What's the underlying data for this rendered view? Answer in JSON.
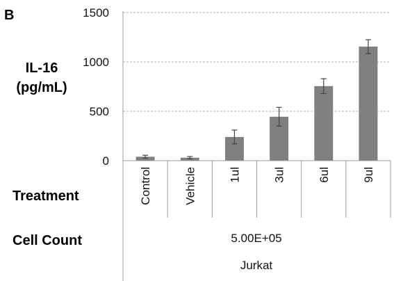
{
  "panel_label": "B",
  "chart_data": {
    "type": "bar",
    "ylabel_lines": [
      "IL-16",
      "(pg/mL)"
    ],
    "ylim": [
      0,
      1500
    ],
    "yticks": [
      0,
      500,
      1000,
      1500
    ],
    "grid": true,
    "categories": [
      "Control",
      "Vehicle",
      "1ul",
      "3ul",
      "6ul",
      "9ul"
    ],
    "values": [
      40,
      30,
      240,
      445,
      755,
      1155
    ],
    "errors": [
      15,
      12,
      70,
      95,
      75,
      70
    ],
    "bar_color": "#808080",
    "grid_color": "#b0b0b0"
  },
  "rows": {
    "treatment_title": "Treatment",
    "cell_count_title": "Cell Count",
    "cell_count_value": "5.00E+05",
    "cell_line": "Jurkat"
  }
}
